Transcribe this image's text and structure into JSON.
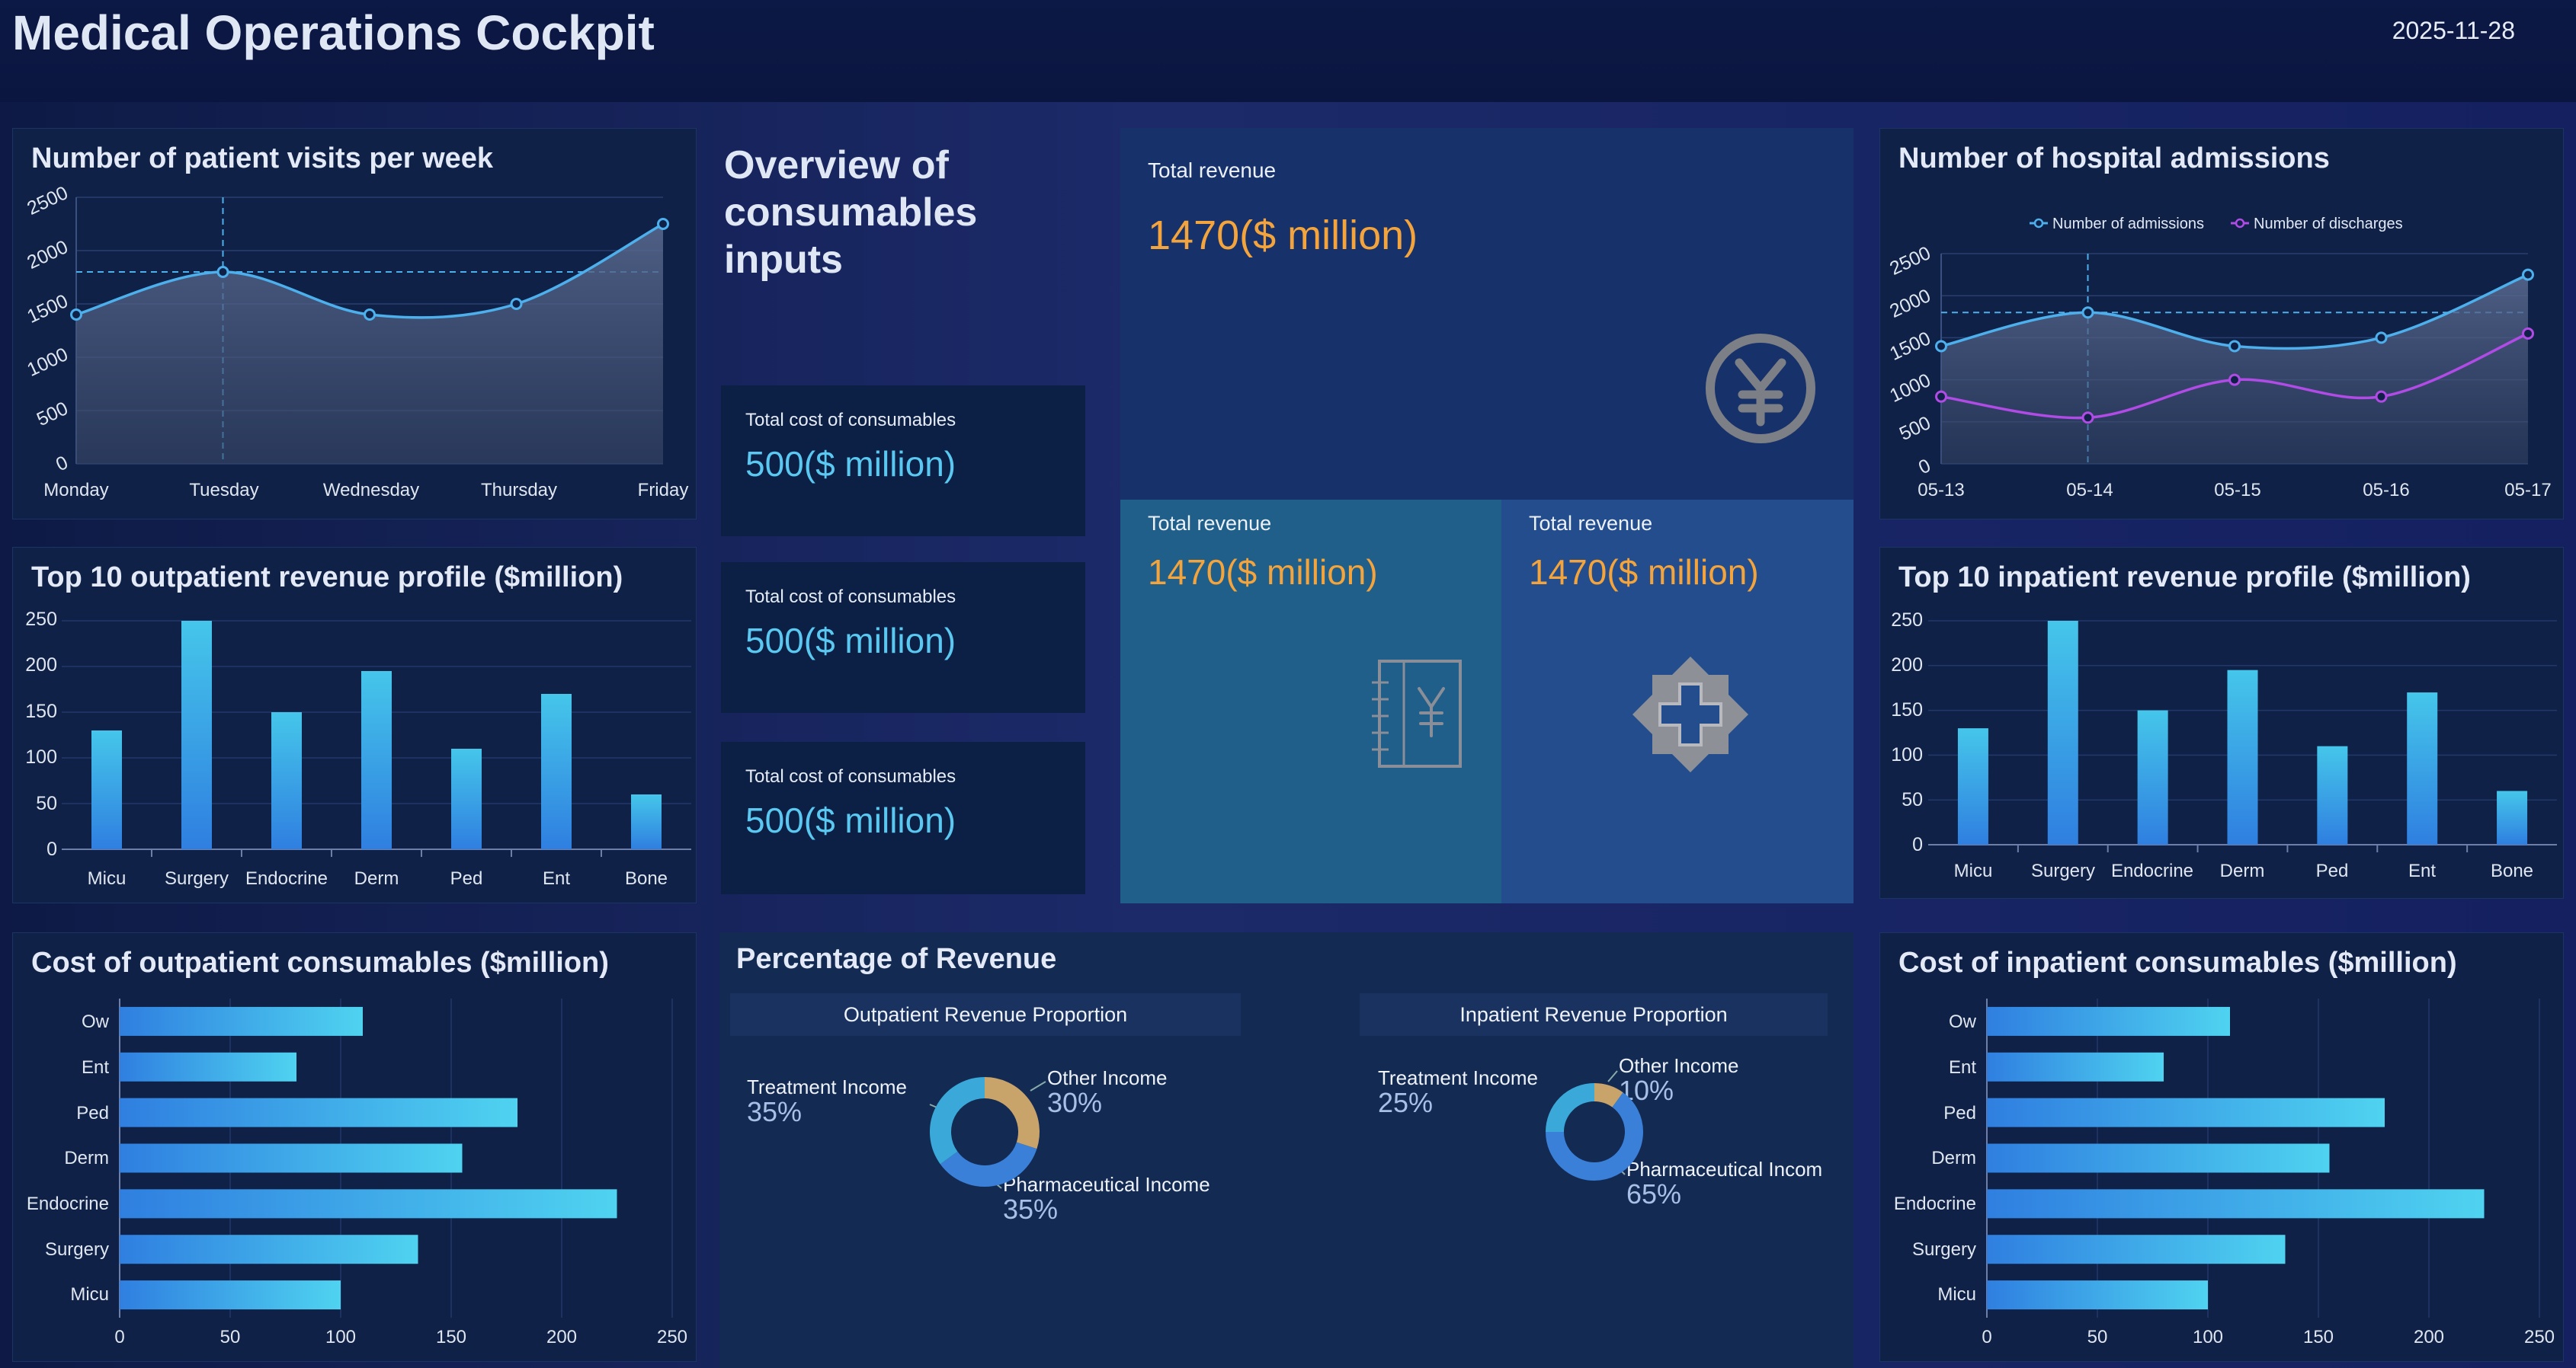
{
  "header": {
    "title": "Medical Operations Cockpit",
    "date": "2025-11-28"
  },
  "weekly_visits": {
    "title": "Number of patient visits per week",
    "chart_data": {
      "type": "line",
      "categories": [
        "Monday",
        "Tuesday",
        "Wednesday",
        "Thursday",
        "Friday"
      ],
      "values": [
        1400,
        1800,
        1400,
        1500,
        2250
      ],
      "ylim": [
        0,
        2500
      ],
      "yticks": [
        0,
        500,
        1000,
        1500,
        2000,
        2500
      ],
      "average_line": 1800,
      "highlighted_category": "Tuesday"
    },
    "y_tick_labels": [
      "0",
      "500",
      "1000",
      "1500",
      "2000",
      "2500"
    ]
  },
  "consumables_overview": {
    "title": "Overview of consumables inputs",
    "cards": [
      {
        "label": "Total cost of consumables",
        "value": "500($ million)"
      },
      {
        "label": "Total cost of consumables",
        "value": "500($ million)"
      },
      {
        "label": "Total cost of consumables",
        "value": "500($ million)"
      }
    ]
  },
  "revenue_tiles": [
    {
      "label": "Total revenue",
      "value": "1470($ million)",
      "icon": "yuan-circle-icon",
      "color": "#17316b"
    },
    {
      "label": "Total revenue",
      "value": "1470($ million)",
      "icon": "ledger-yuan-icon",
      "color": "#1f5f8a"
    },
    {
      "label": "Total revenue",
      "value": "1470($ million)",
      "icon": "medical-cross-icon",
      "color": "#234d8c"
    }
  ],
  "admissions": {
    "title": "Number of hospital admissions",
    "chart_data": {
      "type": "line",
      "categories": [
        "05-13",
        "05-14",
        "05-15",
        "05-16",
        "05-17"
      ],
      "series": [
        {
          "name": "Number of admissions",
          "values": [
            1400,
            1800,
            1400,
            1500,
            2250
          ],
          "color": "#4db0ec"
        },
        {
          "name": "Number of discharges",
          "values": [
            800,
            550,
            1000,
            800,
            1550
          ],
          "color": "#b04be6"
        }
      ],
      "ylim": [
        0,
        2500
      ],
      "yticks": [
        0,
        500,
        1000,
        1500,
        2000,
        2500
      ],
      "average_line": 1800,
      "highlighted_category": "05-14",
      "legend": "top-center"
    },
    "y_tick_labels": [
      "0",
      "500",
      "1000",
      "1500",
      "2000",
      "2500"
    ]
  },
  "outpatient_revenue": {
    "title": "Top 10 outpatient revenue profile ($million)",
    "chart_data": {
      "type": "bar",
      "categories": [
        "Micu",
        "Surgery",
        "Endocrine",
        "Derm",
        "Ped",
        "Ent",
        "Bone"
      ],
      "values": [
        130,
        250,
        150,
        195,
        110,
        170,
        60
      ],
      "ylim": [
        0,
        250
      ],
      "yticks": [
        0,
        50,
        100,
        150,
        200,
        250
      ]
    },
    "y_tick_labels": [
      "0",
      "50",
      "100",
      "150",
      "200",
      "250"
    ]
  },
  "inpatient_revenue": {
    "title": "Top 10 inpatient revenue profile ($million)",
    "chart_data": {
      "type": "bar",
      "categories": [
        "Micu",
        "Surgery",
        "Endocrine",
        "Derm",
        "Ped",
        "Ent",
        "Bone"
      ],
      "values": [
        130,
        250,
        150,
        195,
        110,
        170,
        60
      ],
      "ylim": [
        0,
        250
      ],
      "yticks": [
        0,
        50,
        100,
        150,
        200,
        250
      ]
    },
    "y_tick_labels": [
      "0",
      "50",
      "100",
      "150",
      "200",
      "250"
    ]
  },
  "outpatient_consumables": {
    "title": "Cost of outpatient consumables ($million)",
    "chart_data": {
      "type": "bar",
      "orientation": "horizontal",
      "categories": [
        "Ow",
        "Ent",
        "Ped",
        "Derm",
        "Endocrine",
        "Surgery",
        "Micu"
      ],
      "values": [
        110,
        80,
        180,
        155,
        225,
        135,
        100
      ],
      "xlim": [
        0,
        250
      ],
      "xticks": [
        0,
        50,
        100,
        150,
        200,
        250
      ]
    },
    "x_tick_labels": [
      "0",
      "50",
      "100",
      "150",
      "200",
      "250"
    ]
  },
  "inpatient_consumables": {
    "title": "Cost of inpatient consumables ($million)",
    "chart_data": {
      "type": "bar",
      "orientation": "horizontal",
      "categories": [
        "Ow",
        "Ent",
        "Ped",
        "Derm",
        "Endocrine",
        "Surgery",
        "Micu"
      ],
      "values": [
        110,
        80,
        180,
        155,
        225,
        135,
        100
      ],
      "xlim": [
        0,
        250
      ],
      "xticks": [
        0,
        50,
        100,
        150,
        200,
        250
      ]
    },
    "x_tick_labels": [
      "0",
      "50",
      "100",
      "150",
      "200",
      "250"
    ]
  },
  "revenue_percentage": {
    "title": "Percentage of Revenue",
    "outpatient": {
      "title": "Outpatient Revenue Proportion",
      "chart_data": {
        "type": "pie",
        "categories": [
          "Other Income",
          "Pharmaceutical Income",
          "Treatment Income"
        ],
        "values": [
          30,
          35,
          35
        ],
        "colors": [
          "#c8a36a",
          "#3a7fd8",
          "#3aa8d8"
        ]
      },
      "labels": [
        {
          "name": "Other Income",
          "pct": "30%"
        },
        {
          "name": "Pharmaceutical Income",
          "pct": "35%"
        },
        {
          "name": "Treatment Income",
          "pct": "35%"
        }
      ]
    },
    "inpatient": {
      "title": "Inpatient Revenue Proportion",
      "chart_data": {
        "type": "pie",
        "categories": [
          "Other Income",
          "Pharmaceutical Income",
          "Treatment Income"
        ],
        "values": [
          10,
          65,
          25
        ],
        "colors": [
          "#c8a36a",
          "#3a7fd8",
          "#3aa8d8"
        ]
      },
      "labels": [
        {
          "name": "Other Income",
          "pct": "10%"
        },
        {
          "name": "Pharmaceutical Incom",
          "pct": "65%"
        },
        {
          "name": "Treatment Income",
          "pct": "25%"
        }
      ]
    }
  }
}
